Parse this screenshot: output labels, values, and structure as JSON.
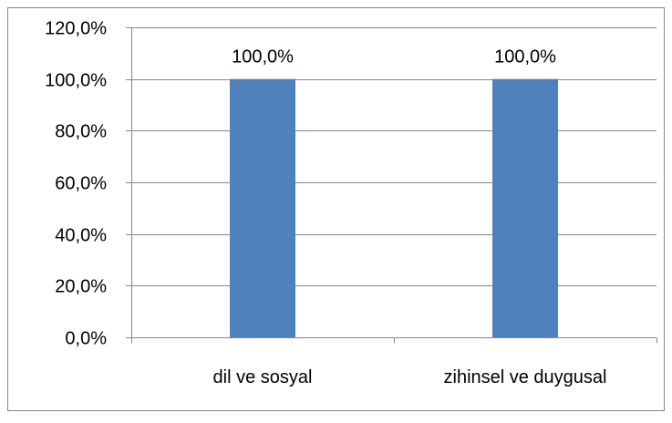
{
  "chart_data": {
    "type": "bar",
    "categories": [
      "dil ve sosyal",
      "zihinsel ve duygusal"
    ],
    "values": [
      100.0,
      100.0
    ],
    "data_labels": [
      "100,0%",
      "100,0%"
    ],
    "y_ticks": [
      {
        "value": 0,
        "label": "0,0%"
      },
      {
        "value": 20,
        "label": "20,0%"
      },
      {
        "value": 40,
        "label": "40,0%"
      },
      {
        "value": 60,
        "label": "60,0%"
      },
      {
        "value": 80,
        "label": "80,0%"
      },
      {
        "value": 100,
        "label": "100,0%"
      },
      {
        "value": 120,
        "label": "120,0%"
      }
    ],
    "ylim": [
      0,
      120
    ],
    "grid": true,
    "legend": "none",
    "bar_color": "#4f81bd",
    "grid_color": "#868686"
  }
}
